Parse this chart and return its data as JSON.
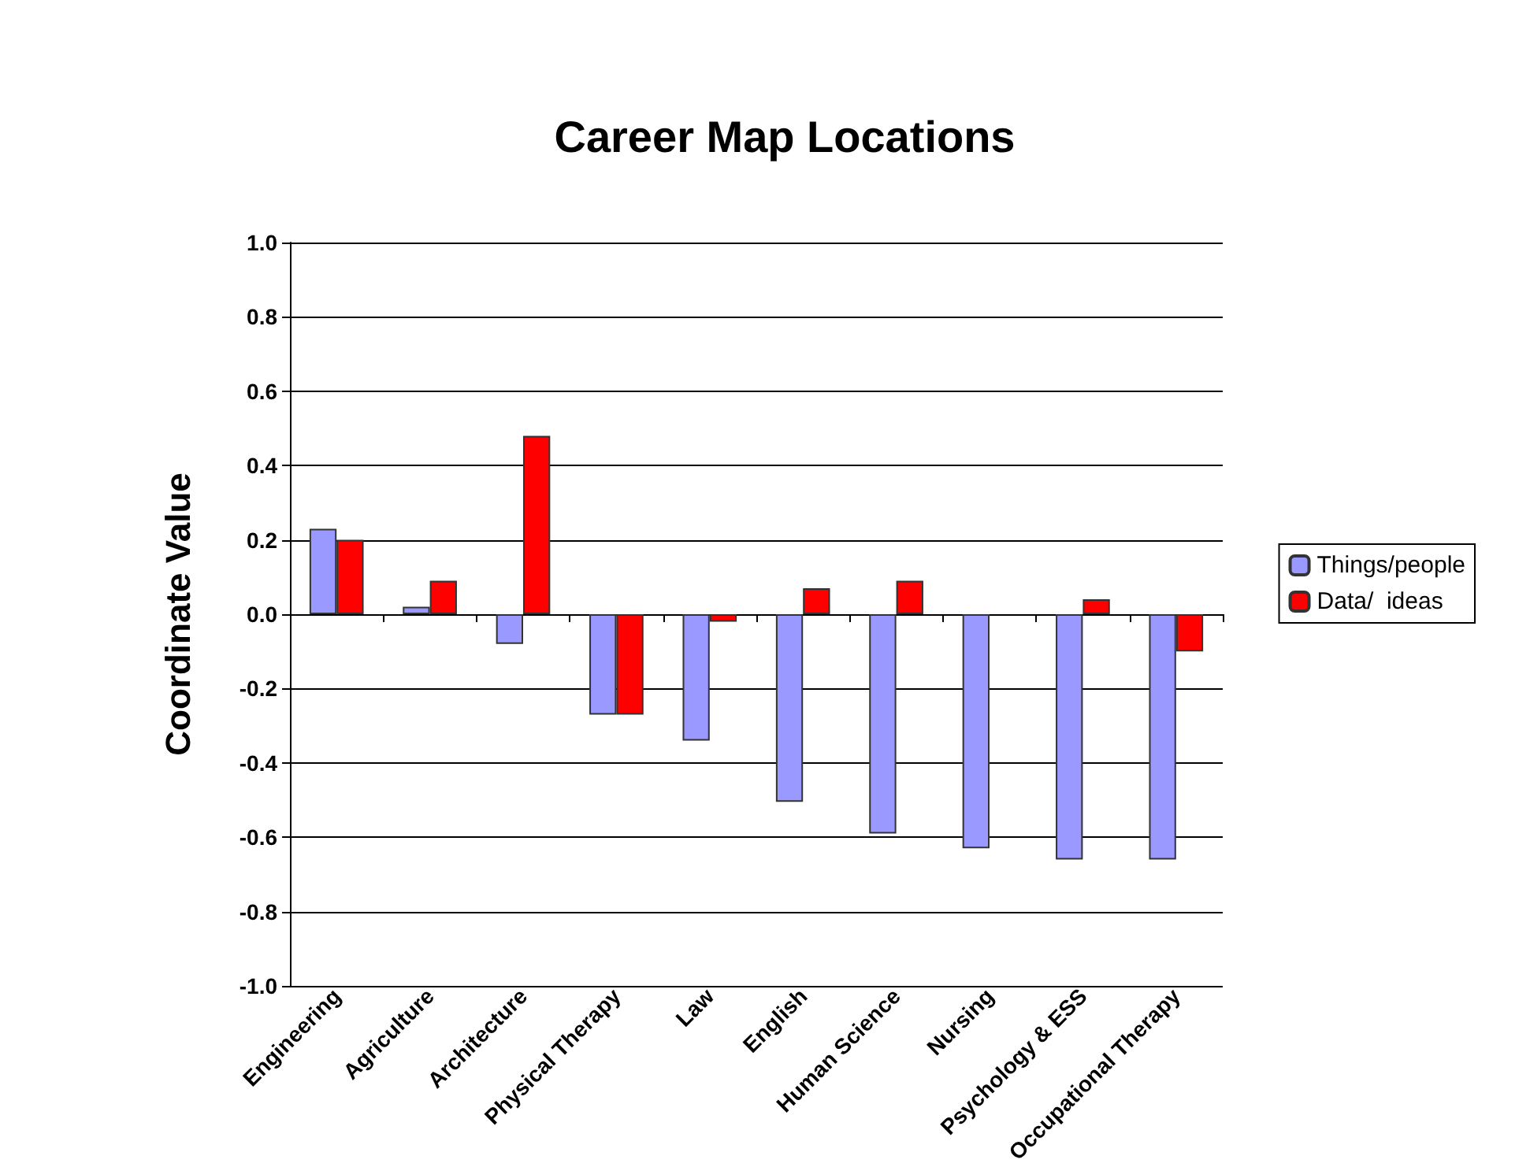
{
  "chart_data": {
    "type": "bar",
    "title": "Career Map Locations",
    "ylabel": "Coordinate Value",
    "categories": [
      "Engineering",
      "Agriculture",
      "Architecture",
      "Physical Therapy",
      "Law",
      "English",
      "Human Science",
      "Nursing",
      "Psychology & ESS",
      "Occupational Therapy"
    ],
    "series": [
      {
        "name": "Things/people",
        "color": "#9999ff",
        "values": [
          0.23,
          0.02,
          -0.08,
          -0.27,
          -0.34,
          -0.505,
          -0.59,
          -0.63,
          -0.66,
          -0.66
        ]
      },
      {
        "name": "Data/  ideas",
        "color": "#ff0000",
        "values": [
          0.2,
          0.09,
          0.48,
          -0.27,
          -0.02,
          0.07,
          0.09,
          null,
          0.04,
          -0.1
        ]
      }
    ],
    "ylim": [
      -1.0,
      1.0
    ],
    "yticks": [
      {
        "value": -1.0,
        "label": "-1.0"
      },
      {
        "value": -0.8,
        "label": "-0.8"
      },
      {
        "value": -0.6,
        "label": "-0.6"
      },
      {
        "value": -0.4,
        "label": "-0.4"
      },
      {
        "value": -0.2,
        "label": "-0.2"
      },
      {
        "value": 0,
        "label": "0.0"
      },
      {
        "value": 0.2,
        "label": "0.2"
      },
      {
        "value": 0.4,
        "label": "0.4"
      },
      {
        "value": 0.6,
        "label": "0.6"
      },
      {
        "value": 0.8,
        "label": "0.8"
      },
      {
        "value": 1.0,
        "label": "1.0"
      }
    ],
    "grid": "y",
    "legend": "right"
  }
}
